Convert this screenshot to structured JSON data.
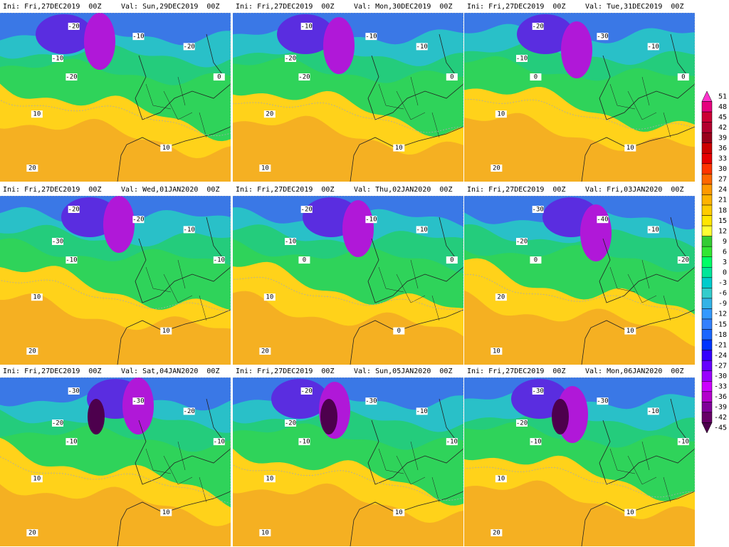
{
  "panels": [
    {
      "ini": "Ini: Fri,27DEC2019  00Z",
      "val": "Val: Sun,29DEC2019  00Z",
      "contour_labels": [
        "-20",
        "-10",
        "-20",
        "-10",
        "-20",
        "0",
        "10",
        "10",
        "20"
      ]
    },
    {
      "ini": "Ini: Fri,27DEC2019  00Z",
      "val": "Val: Mon,30DEC2019  00Z",
      "contour_labels": [
        "-10",
        "-20",
        "-20",
        "-10",
        "-10",
        "0",
        "20",
        "10",
        "10"
      ]
    },
    {
      "ini": "Ini: Fri,27DEC2019  00Z",
      "val": "Val: Tue,31DEC2019  00Z",
      "contour_labels": [
        "-20",
        "-10",
        "0",
        "-30",
        "-10",
        "0",
        "10",
        "10",
        "20"
      ]
    },
    {
      "ini": "Ini: Fri,27DEC2019  00Z",
      "val": "Val: Wed,01JAN2020  00Z",
      "contour_labels": [
        "-20",
        "-30",
        "-10",
        "-20",
        "-10",
        "-10",
        "10",
        "10",
        "20"
      ]
    },
    {
      "ini": "Ini: Fri,27DEC2019  00Z",
      "val": "Val: Thu,02JAN2020  00Z",
      "contour_labels": [
        "-20",
        "-10",
        "0",
        "-10",
        "-10",
        "0",
        "10",
        "0",
        "20"
      ]
    },
    {
      "ini": "Ini: Fri,27DEC2019  00Z",
      "val": "Val: Fri,03JAN2020  00Z",
      "contour_labels": [
        "-30",
        "-20",
        "0",
        "-40",
        "-10",
        "-20",
        "20",
        "10",
        "10"
      ]
    },
    {
      "ini": "Ini: Fri,27DEC2019  00Z",
      "val": "Val: Sat,04JAN2020  00Z",
      "contour_labels": [
        "-30",
        "-20",
        "-10",
        "-30",
        "-20",
        "-10",
        "10",
        "10",
        "20"
      ]
    },
    {
      "ini": "Ini: Fri,27DEC2019  00Z",
      "val": "Val: Sun,05JAN2020  00Z",
      "contour_labels": [
        "-20",
        "-20",
        "-10",
        "-30",
        "-10",
        "-10",
        "10",
        "10",
        "10"
      ]
    },
    {
      "ini": "Ini: Fri,27DEC2019  00Z",
      "val": "Val: Mon,06JAN2020  00Z",
      "contour_labels": [
        "-30",
        "-20",
        "-10",
        "-30",
        "-10",
        "-10",
        "10",
        "10",
        "20"
      ]
    }
  ],
  "colorbar": {
    "levels": [
      51,
      48,
      45,
      42,
      39,
      36,
      33,
      30,
      27,
      24,
      21,
      18,
      15,
      12,
      9,
      6,
      3,
      0,
      -3,
      -6,
      -9,
      -12,
      -15,
      -18,
      -21,
      -24,
      -27,
      -30,
      -33,
      -36,
      -39,
      -42,
      -45
    ],
    "colors": [
      "#ff33cc",
      "#e6007e",
      "#cc0033",
      "#b3002d",
      "#99001a",
      "#cc0000",
      "#e60000",
      "#ff3300",
      "#ff6600",
      "#ff9900",
      "#ffb300",
      "#ffcc00",
      "#ffe600",
      "#ffff33",
      "#33cc33",
      "#33e633",
      "#00ff66",
      "#00e699",
      "#00cccc",
      "#33cccc",
      "#33b3e6",
      "#3399ff",
      "#3380ff",
      "#1a66ff",
      "#0033ff",
      "#3300ff",
      "#6600ff",
      "#9900ff",
      "#cc00ff",
      "#b300cc",
      "#800099",
      "#660066",
      "#4d004d"
    ]
  }
}
